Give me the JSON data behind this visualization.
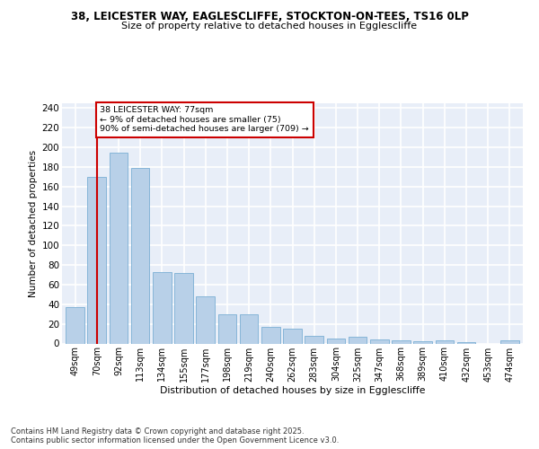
{
  "title1": "38, LEICESTER WAY, EAGLESCLIFFE, STOCKTON-ON-TEES, TS16 0LP",
  "title2": "Size of property relative to detached houses in Egglescliffe",
  "xlabel": "Distribution of detached houses by size in Egglescliffe",
  "ylabel": "Number of detached properties",
  "categories": [
    "49sqm",
    "70sqm",
    "92sqm",
    "113sqm",
    "134sqm",
    "155sqm",
    "177sqm",
    "198sqm",
    "219sqm",
    "240sqm",
    "262sqm",
    "283sqm",
    "304sqm",
    "325sqm",
    "347sqm",
    "368sqm",
    "389sqm",
    "410sqm",
    "432sqm",
    "453sqm",
    "474sqm"
  ],
  "values": [
    37,
    170,
    195,
    179,
    73,
    72,
    48,
    30,
    30,
    17,
    15,
    8,
    5,
    7,
    4,
    3,
    2,
    3,
    1,
    0,
    3
  ],
  "bar_color": "#b8d0e8",
  "bar_edge_color": "#7bafd4",
  "vline_x": 1,
  "vline_color": "#cc0000",
  "annotation_text": "38 LEICESTER WAY: 77sqm\n← 9% of detached houses are smaller (75)\n90% of semi-detached houses are larger (709) →",
  "annotation_box_color": "#ffffff",
  "annotation_box_edge": "#cc0000",
  "ylim": [
    0,
    245
  ],
  "yticks": [
    0,
    20,
    40,
    60,
    80,
    100,
    120,
    140,
    160,
    180,
    200,
    220,
    240
  ],
  "bg_color": "#e8eef8",
  "grid_color": "#ffffff",
  "footer": "Contains HM Land Registry data © Crown copyright and database right 2025.\nContains public sector information licensed under the Open Government Licence v3.0.",
  "title1_fontsize": 8.5,
  "title2_fontsize": 8.0,
  "bar_width": 0.85
}
